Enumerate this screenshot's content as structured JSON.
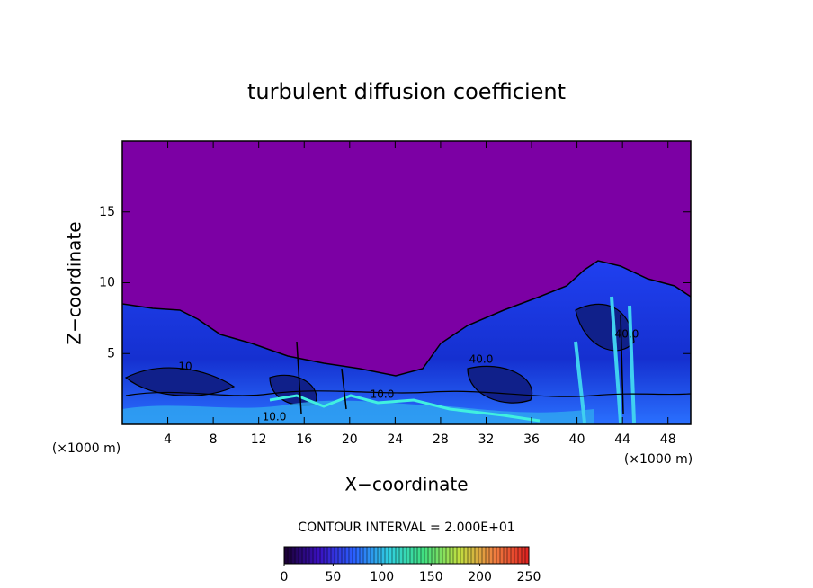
{
  "chart_data": {
    "type": "contour",
    "title": "turbulent diffusion coefficient",
    "xlabel": "X−coordinate",
    "ylabel": "Z−coordinate",
    "x_unit": "(×1000 m)",
    "y_unit": "(×1000 m)",
    "xlim": [
      0,
      50
    ],
    "xticks": [
      4,
      8,
      12,
      16,
      20,
      24,
      28,
      32,
      36,
      40,
      44,
      48
    ],
    "ylim": [
      0,
      20
    ],
    "yticks": [
      5,
      10,
      15
    ],
    "contour_interval_label": "CONTOUR INTERVAL = 2.000E+01",
    "contour_labels": [
      "10",
      "40.0",
      "10.0",
      "40.0",
      "10.0"
    ],
    "colorbar": {
      "lim": [
        0,
        250
      ],
      "ticks": [
        0,
        50,
        100,
        150,
        200,
        250
      ],
      "colors": [
        "#1a0030",
        "#3a10c0",
        "#2a60ff",
        "#30d0e0",
        "#40e080",
        "#c0e040",
        "#f08040",
        "#e02020"
      ]
    }
  }
}
